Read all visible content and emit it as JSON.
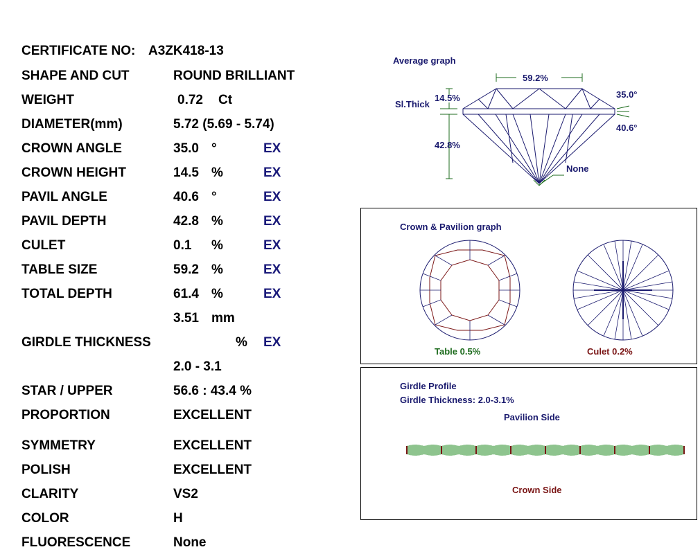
{
  "certificate": {
    "label": "CERTIFICATE NO:",
    "number": "A3ZK418-13"
  },
  "rows": [
    {
      "label": "SHAPE AND CUT",
      "value": "ROUND BRILLIANT",
      "unit": "",
      "grade": ""
    },
    {
      "label": "WEIGHT",
      "value": "0.72",
      "unit": "Ct",
      "grade": ""
    },
    {
      "label": "DIAMETER(mm)",
      "value": "5.72 (5.69 - 5.74)",
      "unit": "",
      "grade": ""
    },
    {
      "label": "CROWN ANGLE",
      "value": "35.0",
      "unit": "°",
      "grade": "EX"
    },
    {
      "label": "CROWN HEIGHT",
      "value": "14.5",
      "unit": "%",
      "grade": "EX"
    },
    {
      "label": "PAVIL ANGLE",
      "value": "40.6",
      "unit": "°",
      "grade": "EX"
    },
    {
      "label": "PAVIL DEPTH",
      "value": "42.8",
      "unit": "%",
      "grade": "EX"
    },
    {
      "label": "CULET",
      "value": "0.1",
      "unit": "%",
      "grade": "EX"
    },
    {
      "label": "TABLE SIZE",
      "value": "59.2",
      "unit": "%",
      "grade": "EX"
    },
    {
      "label": "TOTAL DEPTH",
      "value": "61.4",
      "unit": "%",
      "grade": "EX"
    },
    {
      "label": "",
      "value": "3.51",
      "unit": "mm",
      "grade": ""
    },
    {
      "label": "GIRDLE THICKNESS",
      "value": "",
      "unit": "%",
      "grade": "EX"
    },
    {
      "label": "",
      "value": "2.0 - 3.1",
      "unit": "",
      "grade": ""
    },
    {
      "label": "STAR / UPPER",
      "value": "56.6 : 43.4 %",
      "unit": "",
      "grade": ""
    },
    {
      "label": "PROPORTION",
      "value": "EXCELLENT",
      "unit": "",
      "grade": ""
    },
    {
      "label": "SYMMETRY",
      "value": "EXCELLENT",
      "unit": "",
      "grade": ""
    },
    {
      "label": "POLISH",
      "value": "EXCELLENT",
      "unit": "",
      "grade": ""
    },
    {
      "label": "CLARITY",
      "value": "VS2",
      "unit": "",
      "grade": ""
    },
    {
      "label": "COLOR",
      "value": "H",
      "unit": "",
      "grade": ""
    },
    {
      "label": "FLUORESCENCE",
      "value": "None",
      "unit": "",
      "grade": ""
    }
  ],
  "average_graph": {
    "title": "Average graph",
    "table": "59.2%",
    "crown_height": "14.5%",
    "girdle": "Sl.Thick",
    "crown_angle": "35.0°",
    "pavilion_angle": "40.6°",
    "pavilion_depth": "42.8%",
    "culet": "None"
  },
  "crown_pavilion": {
    "title": "Crown & Pavilion graph",
    "table_label": "Table 0.5%",
    "culet_label": "Culet 0.2%"
  },
  "girdle_profile": {
    "title": "Girdle Profile",
    "thickness": "Girdle Thickness: 2.0-3.1%",
    "pavilion_side": "Pavilion Side",
    "crown_side": "Crown Side"
  },
  "colors": {
    "navy": "#1a1a6e",
    "green": "#1c6b1c",
    "maroon": "#7a1515",
    "grade": "#1a1a7a"
  }
}
